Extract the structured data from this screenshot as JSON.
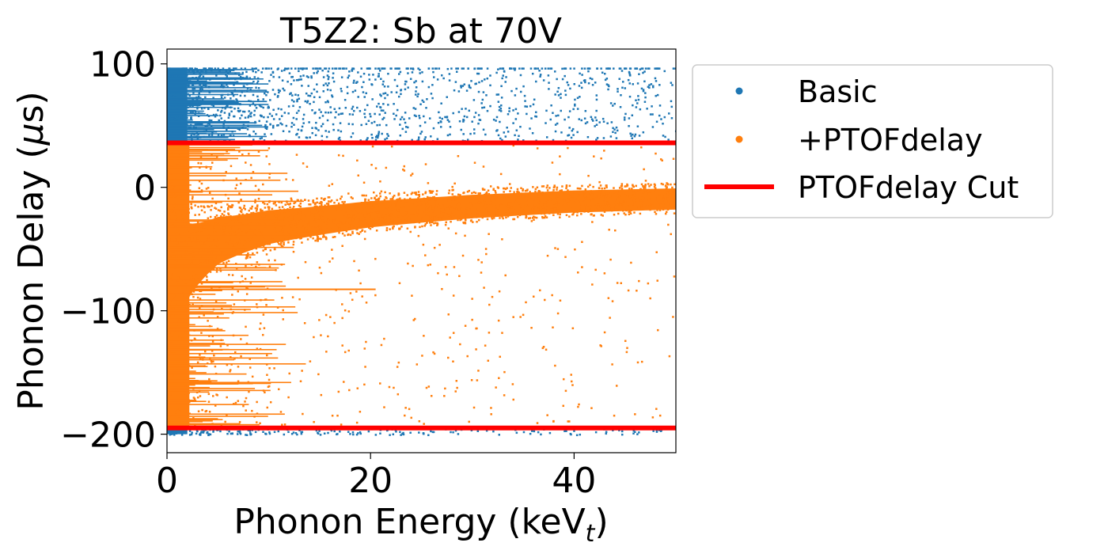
{
  "chart_data": {
    "type": "scatter",
    "title": "T5Z2: Sb at 70V",
    "xlabel": "Phonon Energy (keV",
    "xlabel_sub": "t",
    "xlabel_close": ")",
    "ylabel": "Phonon Delay (",
    "ylabel_mu": "μ",
    "ylabel_close": "s)",
    "xlim": [
      0,
      50
    ],
    "ylim": [
      -215,
      112
    ],
    "xticks": [
      0,
      20,
      40
    ],
    "xtick_labels": [
      "0",
      "20",
      "40"
    ],
    "yticks": [
      100,
      0,
      -100,
      -200
    ],
    "ytick_labels": [
      "100",
      "0",
      "−100",
      "−200"
    ],
    "grid": false,
    "legend_position": "outside-right-top",
    "series": [
      {
        "name": "Basic",
        "color": "#1f77b4",
        "marker": "dot",
        "y_range": [
          -200,
          97
        ],
        "density_note": "dense below 12 keV, sparse to 50 keV"
      },
      {
        "name": "+PTOFdelay",
        "color": "#ff7f0e",
        "marker": "dot",
        "y_range": [
          -195,
          35
        ],
        "band_center": [
          [
            1,
            -60
          ],
          [
            5,
            -40
          ],
          [
            10,
            -30
          ],
          [
            20,
            -20
          ],
          [
            30,
            -14
          ],
          [
            40,
            -10
          ],
          [
            50,
            -8
          ]
        ]
      },
      {
        "name": "PTOFdelay Cut",
        "color": "#ff0000",
        "marker": "line",
        "cut_values": [
          36,
          -195
        ]
      }
    ]
  }
}
